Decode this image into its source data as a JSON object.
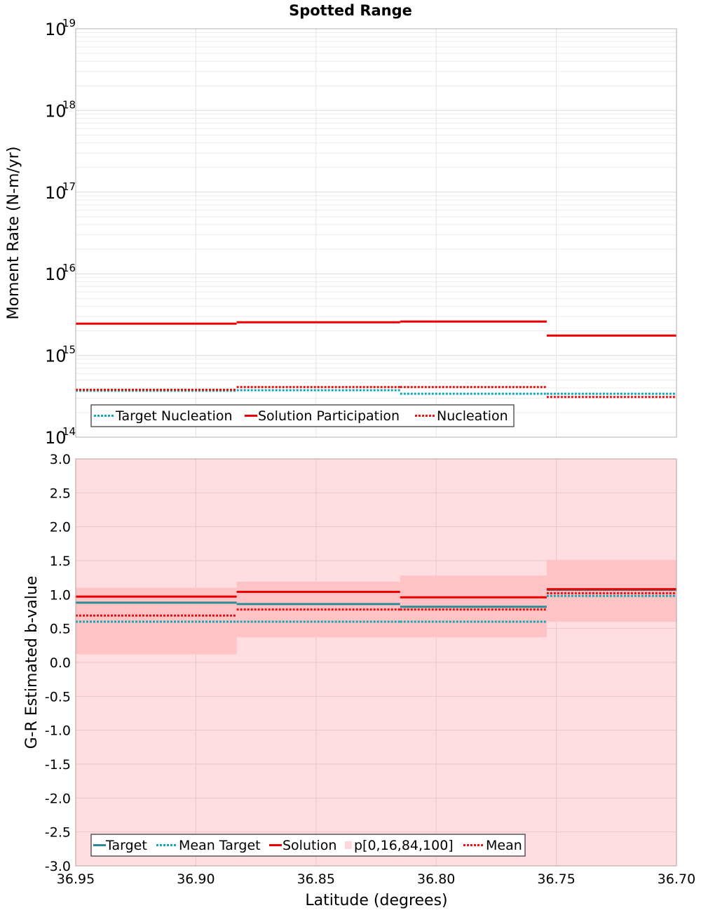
{
  "chart_data": [
    {
      "type": "line",
      "title": "Spotted Range",
      "xlabel": "",
      "ylabel": "Moment Rate (N-m/yr)",
      "yscale": "log",
      "ylim": [
        100000000000000.0,
        1e+19
      ],
      "xlim": [
        36.95,
        36.7
      ],
      "y_tick_labels": [
        {
          "base": "10",
          "exp": "14",
          "value": 100000000000000.0
        },
        {
          "base": "10",
          "exp": "15",
          "value": 1000000000000000.0
        },
        {
          "base": "10",
          "exp": "16",
          "value": 1e+16
        },
        {
          "base": "10",
          "exp": "17",
          "value": 1e+17
        },
        {
          "base": "10",
          "exp": "18",
          "value": 1e+18
        },
        {
          "base": "10",
          "exp": "19",
          "value": 1e+19
        }
      ],
      "x_edges": [
        36.95,
        36.883,
        36.815,
        36.754,
        36.7
      ],
      "series": [
        {
          "name": "Target Nucleation",
          "style": "dotted",
          "color": "#13a8b5",
          "values": [
            370000000000000.0,
            375000000000000.0,
            340000000000000.0,
            340000000000000.0
          ]
        },
        {
          "name": "Solution Participation",
          "style": "solid",
          "color": "#ee0000",
          "values": [
            2450000000000000.0,
            2550000000000000.0,
            2600000000000000.0,
            1750000000000000.0
          ]
        },
        {
          "name": "Nucleation",
          "style": "dotted",
          "color": "#ee1111",
          "values": [
            380000000000000.0,
            410000000000000.0,
            410000000000000.0,
            310000000000000.0
          ]
        }
      ],
      "legend": {
        "position": "bottom-left",
        "labels": [
          "Target Nucleation",
          "Solution Participation",
          "Nucleation"
        ]
      }
    },
    {
      "type": "line",
      "title": "",
      "xlabel": "Latitude (degrees)",
      "ylabel": "G-R Estimated b-value",
      "ylim": [
        -3.0,
        3.0
      ],
      "xlim": [
        36.95,
        36.7
      ],
      "y_ticks": [
        {
          "v": 3.0,
          "label": "3.0"
        },
        {
          "v": 2.5,
          "label": "2.5"
        },
        {
          "v": 2.0,
          "label": "2.0"
        },
        {
          "v": 1.5,
          "label": "1.5"
        },
        {
          "v": 1.0,
          "label": "1.0"
        },
        {
          "v": 0.5,
          "label": "0.5"
        },
        {
          "v": 0.0,
          "label": "0.0"
        },
        {
          "v": -0.5,
          "label": "-0.5"
        },
        {
          "v": -1.0,
          "label": "-1.0"
        },
        {
          "v": -1.5,
          "label": "-1.5"
        },
        {
          "v": -2.0,
          "label": "-2.0"
        },
        {
          "v": -2.5,
          "label": "-2.5"
        },
        {
          "v": -3.0,
          "label": "-3.0"
        }
      ],
      "x_ticks": [
        {
          "v": 36.95,
          "label": "36.95"
        },
        {
          "v": 36.9,
          "label": "36.90"
        },
        {
          "v": 36.85,
          "label": "36.85"
        },
        {
          "v": 36.8,
          "label": "36.80"
        },
        {
          "v": 36.75,
          "label": "36.75"
        },
        {
          "v": 36.7,
          "label": "36.70"
        }
      ],
      "x_edges": [
        36.95,
        36.883,
        36.815,
        36.754,
        36.7
      ],
      "band_p0_100": [
        [
          -3.0,
          3.0
        ],
        [
          -3.0,
          3.0
        ],
        [
          -3.0,
          3.0
        ],
        [
          -3.0,
          3.0
        ]
      ],
      "band_p16_84": [
        [
          0.12,
          1.1
        ],
        [
          0.37,
          1.19
        ],
        [
          0.37,
          1.28
        ],
        [
          0.6,
          1.51
        ]
      ],
      "series": [
        {
          "name": "Target",
          "style": "solid",
          "color": "#2a8a96",
          "values": [
            0.88,
            0.86,
            0.82,
            1.07
          ]
        },
        {
          "name": "Mean Target",
          "style": "dotted",
          "color": "#13a8b5",
          "values": [
            0.6,
            0.6,
            0.6,
            0.98
          ]
        },
        {
          "name": "Solution",
          "style": "solid",
          "color": "#ee0000",
          "values": [
            0.97,
            1.04,
            0.96,
            1.08
          ]
        },
        {
          "name": "Mean",
          "style": "dotted",
          "color": "#ee1111",
          "values": [
            0.69,
            0.78,
            0.78,
            1.02
          ]
        }
      ],
      "legend": {
        "position": "bottom-left",
        "labels": [
          "Target",
          "Mean Target",
          "Solution",
          "p[0,16,84,100]",
          "Mean"
        ]
      }
    }
  ]
}
